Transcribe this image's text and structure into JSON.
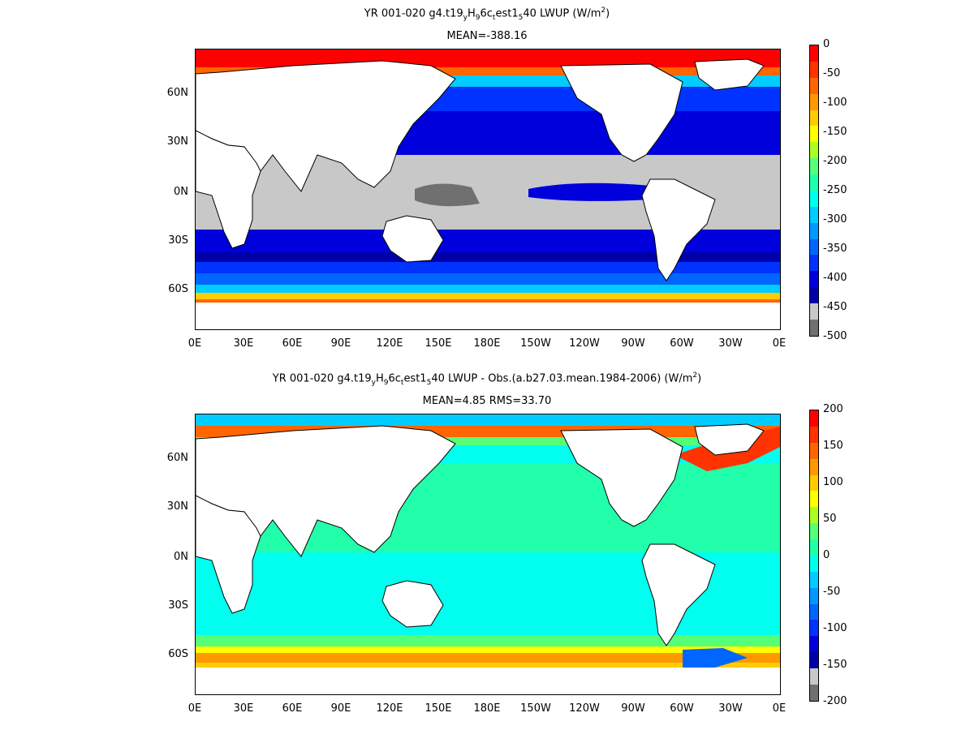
{
  "map1": {
    "title_parts": [
      "YR 001-020 g4.t19",
      "y",
      "H",
      "9",
      "6c",
      "t",
      "est1",
      "5",
      "40  LWUP (W/m",
      "2",
      ")"
    ],
    "subtitle": "MEAN=-388.16",
    "colorbar_labels": [
      "0",
      "-50",
      "-100",
      "-150",
      "-200",
      "-250",
      "-300",
      "-350",
      "-400",
      "-450",
      "-500"
    ],
    "colorbar_colors": [
      "#ff0000",
      "#ff3300",
      "#ff6600",
      "#ff9900",
      "#ffcc00",
      "#ffff00",
      "#aaff22",
      "#55ff77",
      "#22ffaa",
      "#00ffee",
      "#00ccff",
      "#0099ff",
      "#0066ff",
      "#0033ff",
      "#0000dd",
      "#0000aa",
      "#c8c8c8",
      "#707070"
    ]
  },
  "map2": {
    "title_parts": [
      "YR 001-020 g4.t19",
      "y",
      "H",
      "9",
      "6c",
      "t",
      "est1",
      "5",
      "40 LWUP - Obs.(a.b27.03.mean.1984-2006) (W/m",
      "2",
      ")"
    ],
    "subtitle": "MEAN=4.85 RMS=33.70",
    "colorbar_labels": [
      "200",
      "150",
      "100",
      "50",
      "0",
      "-50",
      "-100",
      "-150",
      "-200"
    ],
    "colorbar_colors": [
      "#ff0000",
      "#ff3300",
      "#ff6600",
      "#ff9900",
      "#ffcc00",
      "#ffff00",
      "#aaff22",
      "#55ff77",
      "#22ffaa",
      "#00ffee",
      "#00ccff",
      "#0099ff",
      "#0066ff",
      "#0033ff",
      "#0000dd",
      "#0000aa",
      "#c8c8c8",
      "#707070"
    ]
  },
  "lat_labels": [
    "60N",
    "30N",
    "0N",
    "30S",
    "60S"
  ],
  "lon_labels": [
    "0E",
    "30E",
    "60E",
    "90E",
    "120E",
    "150E",
    "180E",
    "150W",
    "120W",
    "90W",
    "60W",
    "30W",
    "0E"
  ]
}
